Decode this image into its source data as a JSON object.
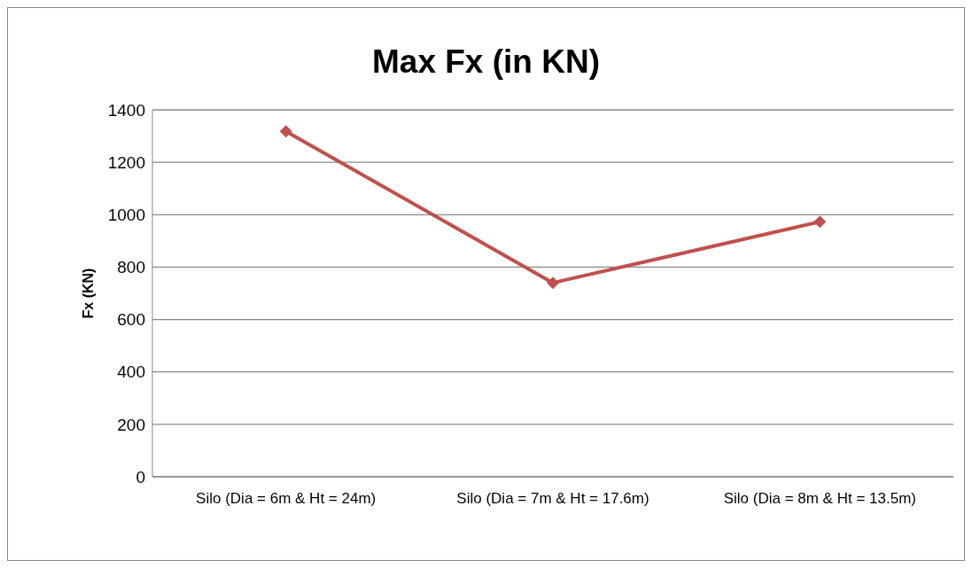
{
  "chart_data": {
    "type": "line",
    "title": "Max Fx (in KN)",
    "ylabel": "Fx (KN)",
    "categories": [
      "Silo (Dia = 6m & Ht = 24m)",
      "Silo (Dia = 7m & Ht = 17.6m)",
      "Silo (Dia = 8m & Ht = 13.5m)"
    ],
    "series": [
      {
        "color": "#c0504d",
        "values": [
          1318,
          740,
          973
        ]
      }
    ],
    "ylim": [
      0,
      1400
    ],
    "yticks": [
      0,
      200,
      400,
      600,
      800,
      1000,
      1200,
      1400
    ],
    "grid": "y",
    "legend": false,
    "marker": "diamond",
    "line_style": "solid"
  }
}
